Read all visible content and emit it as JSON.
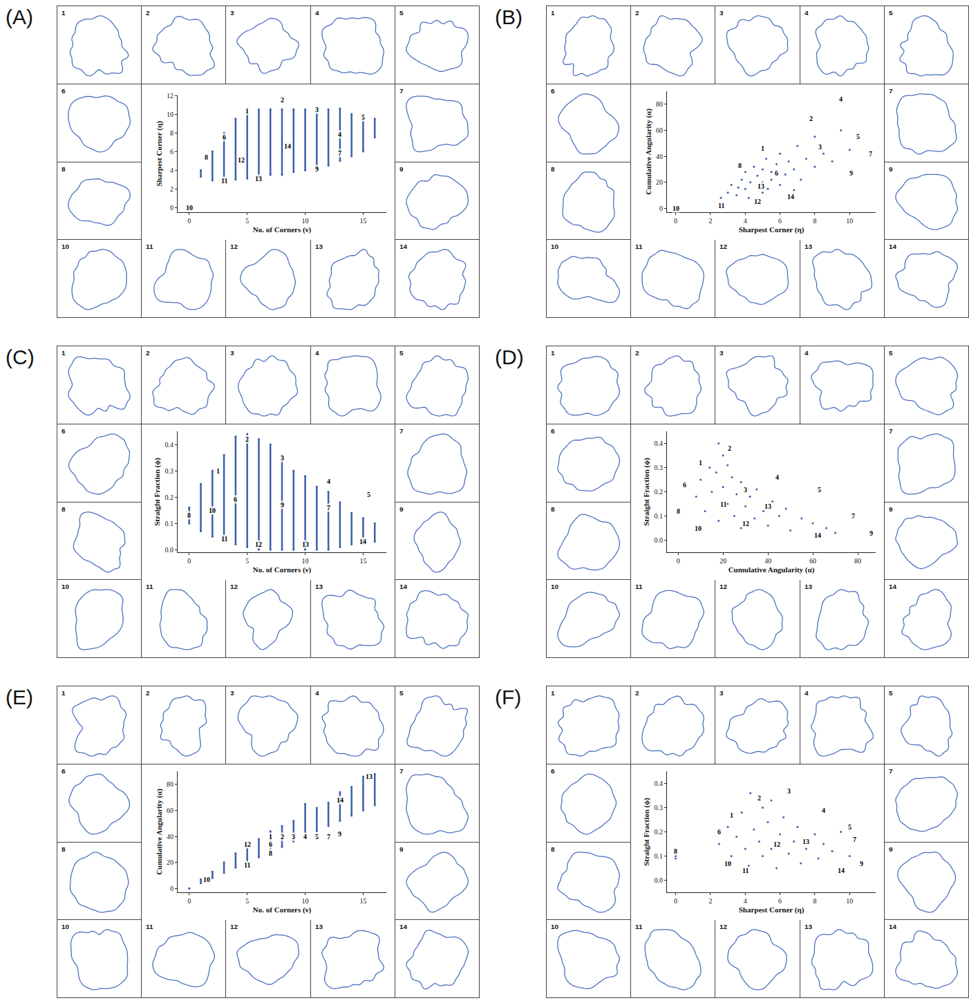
{
  "chart_data": [
    {
      "type": "strip",
      "panel": "(A)",
      "xlabel": "No. of Corners (ν)",
      "ylabel": "Sharpest Corner (η)",
      "xlim": [
        -1,
        17
      ],
      "ylim": [
        -0.5,
        12
      ],
      "xticks": [
        0,
        5,
        10,
        15
      ],
      "yticks": [
        0,
        2,
        4,
        6,
        8,
        10,
        12
      ],
      "color": "#3a5fa8",
      "x": [
        0,
        1,
        2,
        3,
        4,
        5,
        6,
        7,
        8,
        9,
        10,
        11,
        12,
        13,
        14,
        15,
        16
      ],
      "y_min": [
        0,
        3.3,
        2.9,
        2.9,
        3.0,
        3.1,
        3.2,
        3.5,
        3.5,
        3.8,
        4.0,
        4.2,
        4.5,
        5.0,
        5.5,
        6.0,
        7.5
      ],
      "y_max": [
        0,
        4.0,
        6.0,
        8.0,
        9.5,
        10.3,
        10.5,
        10.5,
        10.5,
        10.5,
        10.5,
        10.5,
        10.5,
        10.6,
        10.0,
        9.8,
        9.5
      ],
      "annotations": [
        {
          "text": "1",
          "x": 5,
          "y": 10.3
        },
        {
          "text": "2",
          "x": 8,
          "y": 11.5
        },
        {
          "text": "3",
          "x": 11,
          "y": 10.5
        },
        {
          "text": "4",
          "x": 13,
          "y": 7.8
        },
        {
          "text": "5",
          "x": 15,
          "y": 9.7
        },
        {
          "text": "6",
          "x": 3,
          "y": 7.5
        },
        {
          "text": "7",
          "x": 13,
          "y": 5.8
        },
        {
          "text": "8",
          "x": 1.5,
          "y": 5.4
        },
        {
          "text": "9",
          "x": 11,
          "y": 4.1
        },
        {
          "text": "10",
          "x": 0,
          "y": 0
        },
        {
          "text": "11",
          "x": 3,
          "y": 2.9
        },
        {
          "text": "12",
          "x": 4.5,
          "y": 5.1
        },
        {
          "text": "13",
          "x": 6,
          "y": 3.1
        },
        {
          "text": "14",
          "x": 8.5,
          "y": 6.6
        }
      ],
      "particles": [
        "1",
        "2",
        "3",
        "4",
        "5",
        "6",
        "7",
        "8",
        "9",
        "10",
        "11",
        "12",
        "13",
        "14"
      ]
    },
    {
      "type": "scatter",
      "panel": "(B)",
      "xlabel": "Sharpest Corner (η)",
      "ylabel": "Cumulative Angularity (α)",
      "xlim": [
        -0.5,
        11.5
      ],
      "ylim": [
        -3,
        90
      ],
      "xticks": [
        0,
        2,
        4,
        6,
        8,
        10
      ],
      "yticks": [
        0,
        20,
        40,
        60,
        80
      ],
      "color": "#3a5fa8",
      "x": [
        2.6,
        3,
        3.2,
        3.5,
        3.8,
        4,
        4,
        4.3,
        4.5,
        4.7,
        5,
        5,
        5,
        5.2,
        5.5,
        5.5,
        5.8,
        6,
        6,
        6.3,
        6.5,
        6.8,
        7,
        7.2,
        7.5,
        8,
        8,
        8.5,
        9,
        9.5,
        10,
        4.2,
        3.6,
        5.3,
        6.8
      ],
      "y": [
        8,
        12,
        18,
        10,
        22,
        15,
        28,
        20,
        32,
        25,
        12,
        20,
        30,
        38,
        22,
        28,
        34,
        18,
        42,
        26,
        36,
        30,
        48,
        22,
        38,
        32,
        55,
        42,
        36,
        60,
        45,
        8,
        16,
        15,
        14
      ],
      "annotations": [
        {
          "text": "1",
          "x": 5,
          "y": 46
        },
        {
          "text": "2",
          "x": 7.8,
          "y": 69
        },
        {
          "text": "3",
          "x": 8.3,
          "y": 47
        },
        {
          "text": "4",
          "x": 9.5,
          "y": 84
        },
        {
          "text": "5",
          "x": 10.5,
          "y": 55
        },
        {
          "text": "6",
          "x": 5.8,
          "y": 27
        },
        {
          "text": "7",
          "x": 11.2,
          "y": 42
        },
        {
          "text": "8",
          "x": 3.7,
          "y": 33
        },
        {
          "text": "9",
          "x": 10.1,
          "y": 27
        },
        {
          "text": "10",
          "x": 0,
          "y": 0
        },
        {
          "text": "11",
          "x": 2.6,
          "y": 2
        },
        {
          "text": "12",
          "x": 4.7,
          "y": 5
        },
        {
          "text": "13",
          "x": 4.9,
          "y": 17
        },
        {
          "text": "14",
          "x": 6.6,
          "y": 9
        }
      ],
      "particles": [
        "1",
        "2",
        "3",
        "4",
        "5",
        "6",
        "7",
        "8",
        "9",
        "10",
        "11",
        "12",
        "13",
        "14"
      ]
    },
    {
      "type": "strip",
      "panel": "(C)",
      "xlabel": "No. of Corners (ν)",
      "ylabel": "Straight Fraction (ϕ)",
      "xlim": [
        -1,
        17
      ],
      "ylim": [
        -0.01,
        0.45
      ],
      "xticks": [
        0,
        5,
        10,
        15
      ],
      "yticks": [
        {
          "value": 0,
          "label": "0.0"
        },
        0.1,
        0.2,
        0.3,
        0.4
      ],
      "color": "#3a5fa8",
      "x": [
        0,
        1,
        2,
        3,
        4,
        5,
        6,
        7,
        8,
        9,
        10,
        11,
        12,
        13,
        14,
        15,
        16
      ],
      "y_min": [
        0.1,
        0.07,
        0.05,
        0.03,
        0.02,
        0.01,
        0.0,
        0.0,
        0.0,
        0.0,
        0.0,
        0.0,
        0.0,
        0.01,
        0.02,
        0.02,
        0.03
      ],
      "y_max": [
        0.16,
        0.25,
        0.3,
        0.36,
        0.43,
        0.44,
        0.42,
        0.4,
        0.36,
        0.3,
        0.28,
        0.24,
        0.22,
        0.18,
        0.14,
        0.12,
        0.1
      ],
      "annotations": [
        {
          "text": "1",
          "x": 2.5,
          "y": 0.3
        },
        {
          "text": "2",
          "x": 5,
          "y": 0.42
        },
        {
          "text": "3",
          "x": 8,
          "y": 0.35
        },
        {
          "text": "4",
          "x": 12,
          "y": 0.26
        },
        {
          "text": "5",
          "x": 15.5,
          "y": 0.21
        },
        {
          "text": "6",
          "x": 4,
          "y": 0.19
        },
        {
          "text": "7",
          "x": 12,
          "y": 0.16
        },
        {
          "text": "8",
          "x": 0,
          "y": 0.13
        },
        {
          "text": "9",
          "x": 8,
          "y": 0.17
        },
        {
          "text": "10",
          "x": 2,
          "y": 0.15
        },
        {
          "text": "11",
          "x": 3,
          "y": 0.04
        },
        {
          "text": "12",
          "x": 6,
          "y": 0.02
        },
        {
          "text": "13",
          "x": 10,
          "y": 0.02
        },
        {
          "text": "14",
          "x": 15,
          "y": 0.03
        }
      ],
      "particles": [
        "1",
        "2",
        "3",
        "4",
        "5",
        "6",
        "7",
        "8",
        "9",
        "10",
        "11",
        "12",
        "13",
        "14"
      ]
    },
    {
      "type": "scatter",
      "panel": "(D)",
      "xlabel": "Cumulative Angularity (α)",
      "ylabel": "Straight Fraction (ϕ)",
      "xlim": [
        -5,
        88
      ],
      "ylim": [
        -0.05,
        0.45
      ],
      "xticks": [
        0,
        20,
        40,
        60,
        80
      ],
      "yticks": [
        {
          "value": 0,
          "label": "0.0"
        },
        0.1,
        0.2,
        0.3,
        0.4
      ],
      "color": "#3a5fa8",
      "x": [
        8,
        10,
        12,
        14,
        15,
        17,
        18,
        20,
        20,
        22,
        24,
        25,
        26,
        28,
        28,
        30,
        32,
        34,
        35,
        38,
        40,
        42,
        45,
        48,
        50,
        55,
        60,
        66,
        70,
        22,
        18
      ],
      "y": [
        0.18,
        0.25,
        0.12,
        0.3,
        0.2,
        0.28,
        0.08,
        0.22,
        0.35,
        0.15,
        0.26,
        0.1,
        0.19,
        0.05,
        0.24,
        0.14,
        0.18,
        0.09,
        0.21,
        0.12,
        0.06,
        0.16,
        0.1,
        0.13,
        0.04,
        0.09,
        0.07,
        0.05,
        0.03,
        0.31,
        0.4
      ],
      "annotations": [
        {
          "text": "1",
          "x": 10,
          "y": 0.32
        },
        {
          "text": "2",
          "x": 23,
          "y": 0.38
        },
        {
          "text": "3",
          "x": 30,
          "y": 0.21
        },
        {
          "text": "4",
          "x": 44,
          "y": 0.26
        },
        {
          "text": "5",
          "x": 63,
          "y": 0.21
        },
        {
          "text": "6",
          "x": 3,
          "y": 0.23
        },
        {
          "text": "7",
          "x": 78,
          "y": 0.1
        },
        {
          "text": "8",
          "x": 0,
          "y": 0.12
        },
        {
          "text": "9",
          "x": 86,
          "y": 0.03
        },
        {
          "text": "10",
          "x": 9,
          "y": 0.05
        },
        {
          "text": "11",
          "x": 20,
          "y": 0.15
        },
        {
          "text": "12",
          "x": 30,
          "y": 0.07
        },
        {
          "text": "13",
          "x": 40,
          "y": 0.14
        },
        {
          "text": "14",
          "x": 62,
          "y": 0.02
        }
      ],
      "particles": [
        "1",
        "2",
        "3",
        "4",
        "5",
        "6",
        "7",
        "8",
        "9",
        "10",
        "11",
        "12",
        "13",
        "14"
      ]
    },
    {
      "type": "strip",
      "panel": "(E)",
      "xlabel": "No. of Corners (ν)",
      "ylabel": "Cumulative Angularity (α)",
      "xlim": [
        -1,
        17
      ],
      "ylim": [
        -3,
        90
      ],
      "xticks": [
        0,
        5,
        10,
        15
      ],
      "yticks": [
        0,
        20,
        40,
        60,
        80
      ],
      "color": "#3a5fa8",
      "x": [
        0,
        1,
        2,
        3,
        4,
        5,
        6,
        7,
        8,
        9,
        10,
        11,
        12,
        13,
        14,
        15,
        16
      ],
      "y_min": [
        0,
        4,
        8,
        12,
        16,
        20,
        24,
        28,
        32,
        36,
        40,
        44,
        48,
        52,
        56,
        60,
        64
      ],
      "y_max": [
        0,
        7,
        13,
        20,
        27,
        33,
        38,
        44,
        48,
        52,
        65,
        62,
        66,
        74,
        78,
        86,
        88
      ],
      "annotations": [
        {
          "text": "1",
          "x": 7,
          "y": 40
        },
        {
          "text": "2",
          "x": 8,
          "y": 40
        },
        {
          "text": "3",
          "x": 9,
          "y": 40
        },
        {
          "text": "4",
          "x": 10,
          "y": 40
        },
        {
          "text": "5",
          "x": 11,
          "y": 40
        },
        {
          "text": "6",
          "x": 7,
          "y": 34
        },
        {
          "text": "7",
          "x": 12,
          "y": 40
        },
        {
          "text": "8",
          "x": 7,
          "y": 27
        },
        {
          "text": "9",
          "x": 13,
          "y": 42
        },
        {
          "text": "10",
          "x": 1.5,
          "y": 7
        },
        {
          "text": "11",
          "x": 5,
          "y": 18
        },
        {
          "text": "12",
          "x": 5,
          "y": 34
        },
        {
          "text": "13",
          "x": 15.5,
          "y": 86
        },
        {
          "text": "14",
          "x": 13,
          "y": 68
        }
      ],
      "particles": [
        "1",
        "2",
        "3",
        "4",
        "5",
        "6",
        "7",
        "8",
        "9",
        "10",
        "11",
        "12",
        "13",
        "14"
      ]
    },
    {
      "type": "scatter",
      "panel": "(F)",
      "xlabel": "Sharpest Corner (η)",
      "ylabel": "Straight Fraction (ϕ)",
      "xlim": [
        -0.5,
        11.5
      ],
      "ylim": [
        -0.05,
        0.45
      ],
      "xticks": [
        0,
        2,
        4,
        6,
        8,
        10
      ],
      "yticks": [
        {
          "value": 0,
          "label": "0.0"
        },
        0.1,
        0.2,
        0.3,
        0.4
      ],
      "color": "#3a5fa8",
      "x": [
        2.5,
        3,
        3.2,
        3.5,
        3.8,
        4,
        4.2,
        4.5,
        4.8,
        5,
        5,
        5.3,
        5.5,
        5.8,
        6,
        6.2,
        6.5,
        6.8,
        7,
        7.2,
        7.5,
        8,
        8.2,
        8.5,
        9,
        9.5,
        10,
        0,
        0,
        5.5,
        4.3
      ],
      "y": [
        0.15,
        0.22,
        0.1,
        0.18,
        0.28,
        0.13,
        0.06,
        0.21,
        0.16,
        0.3,
        0.1,
        0.24,
        0.13,
        0.05,
        0.19,
        0.26,
        0.11,
        0.16,
        0.22,
        0.07,
        0.13,
        0.19,
        0.09,
        0.15,
        0.12,
        0.2,
        0.1,
        0.09,
        0.1,
        0.33,
        0.36
      ],
      "annotations": [
        {
          "text": "1",
          "x": 3.2,
          "y": 0.27
        },
        {
          "text": "2",
          "x": 4.8,
          "y": 0.34
        },
        {
          "text": "3",
          "x": 6.5,
          "y": 0.37
        },
        {
          "text": "4",
          "x": 8.5,
          "y": 0.29
        },
        {
          "text": "5",
          "x": 10,
          "y": 0.22
        },
        {
          "text": "6",
          "x": 2.5,
          "y": 0.2
        },
        {
          "text": "7",
          "x": 10.3,
          "y": 0.17
        },
        {
          "text": "8",
          "x": 0,
          "y": 0.12
        },
        {
          "text": "9",
          "x": 10.7,
          "y": 0.07
        },
        {
          "text": "10",
          "x": 3,
          "y": 0.07
        },
        {
          "text": "11",
          "x": 4,
          "y": 0.04
        },
        {
          "text": "12",
          "x": 5.8,
          "y": 0.15
        },
        {
          "text": "13",
          "x": 7.5,
          "y": 0.16
        },
        {
          "text": "14",
          "x": 9.5,
          "y": 0.04
        }
      ],
      "particles": [
        "1",
        "2",
        "3",
        "4",
        "5",
        "6",
        "7",
        "8",
        "9",
        "10",
        "11",
        "12",
        "13",
        "14"
      ]
    }
  ]
}
